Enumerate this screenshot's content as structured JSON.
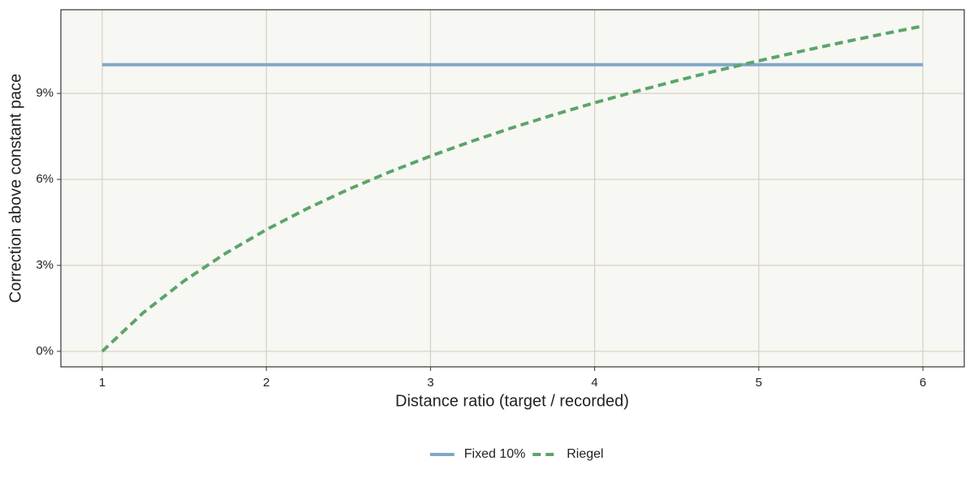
{
  "chart_data": {
    "type": "line",
    "xlabel": "Distance ratio (target / recorded)",
    "ylabel": "Correction above constant pace",
    "xlim": [
      0.748,
      6.252
    ],
    "ylim": [
      -0.54,
      11.92
    ],
    "xticks": [
      1,
      2,
      3,
      4,
      5,
      6
    ],
    "yticks": [
      {
        "value": 0,
        "label": "0%"
      },
      {
        "value": 3,
        "label": "3%"
      },
      {
        "value": 6,
        "label": "6%"
      },
      {
        "value": 9,
        "label": "9%"
      }
    ],
    "grid": true,
    "legend": "bottom",
    "series": [
      {
        "name": "Fixed 10%",
        "color": "#7fa8c9",
        "dash": "solid",
        "x": [
          1,
          6
        ],
        "values": [
          10,
          10
        ]
      },
      {
        "name": "Riegel",
        "color": "#5ba56a",
        "dash": "dashed",
        "x": [
          1,
          1.25,
          1.5,
          1.75,
          2,
          2.25,
          2.5,
          2.75,
          3,
          3.25,
          3.5,
          3.75,
          4,
          4.25,
          4.5,
          4.75,
          5,
          5.25,
          5.5,
          5.75,
          6
        ],
        "values": [
          0,
          1.348,
          2.463,
          3.415,
          4.247,
          4.986,
          5.652,
          6.258,
          6.814,
          7.328,
          7.806,
          8.254,
          8.674,
          9.069,
          9.444,
          9.8,
          10.138,
          10.461,
          10.77,
          11.066,
          11.35
        ]
      }
    ]
  }
}
